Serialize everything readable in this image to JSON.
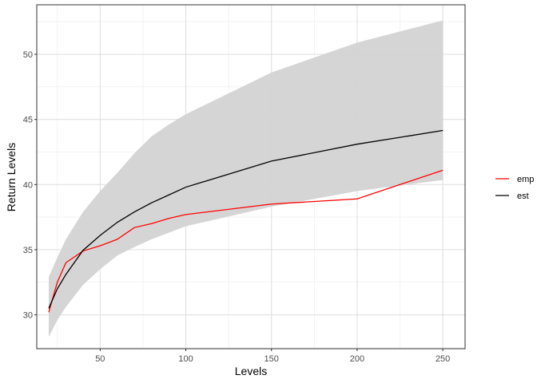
{
  "chart_data": {
    "type": "line",
    "title": "",
    "xlabel": "Levels",
    "ylabel": "Return Levels",
    "xlim": [
      13,
      263
    ],
    "ylim": [
      27.4,
      53.8
    ],
    "x_ticks": [
      50,
      100,
      150,
      200,
      250
    ],
    "y_ticks": [
      30,
      35,
      40,
      45,
      50
    ],
    "grid": true,
    "legend_placement": "right",
    "x": [
      20,
      25,
      30,
      40,
      50,
      60,
      70,
      80,
      90,
      100,
      150,
      200,
      250
    ],
    "series": [
      {
        "name": "emp",
        "color": "#ff0000",
        "values": [
          30.2,
          32.5,
          34.0,
          34.9,
          35.3,
          35.8,
          36.7,
          37.0,
          37.4,
          37.7,
          38.5,
          38.9,
          41.1
        ]
      },
      {
        "name": "est",
        "color": "#000000",
        "values": [
          30.5,
          32.0,
          33.1,
          34.95,
          36.1,
          37.1,
          37.9,
          38.6,
          39.2,
          39.8,
          41.8,
          43.1,
          44.15
        ]
      }
    ],
    "band": {
      "color": "#d3d3d3",
      "lower": [
        28.3,
        29.6,
        30.6,
        32.3,
        33.5,
        34.55,
        35.2,
        35.8,
        36.3,
        36.8,
        38.3,
        39.5,
        40.35
      ],
      "upper": [
        32.9,
        34.4,
        35.8,
        37.9,
        39.5,
        40.9,
        42.4,
        43.7,
        44.6,
        45.4,
        48.6,
        50.9,
        52.6
      ]
    }
  }
}
